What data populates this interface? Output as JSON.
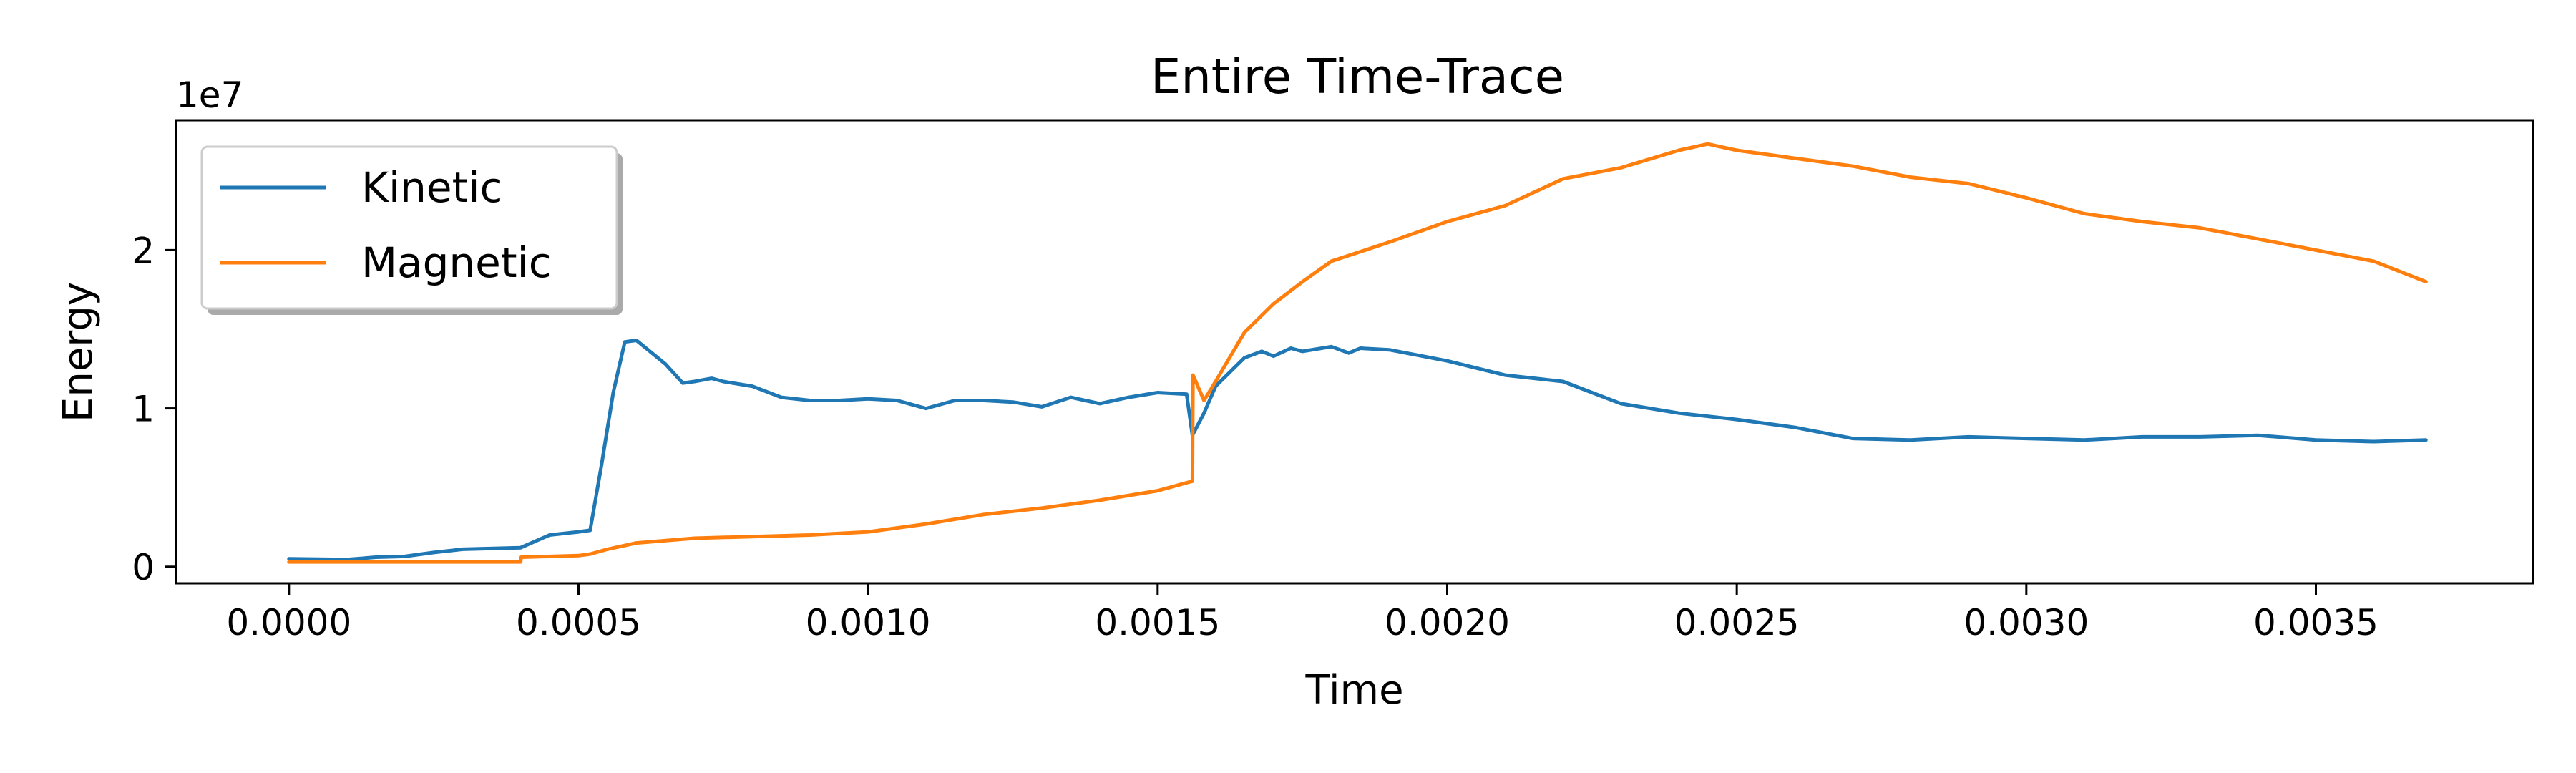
{
  "chart_data": {
    "type": "line",
    "title": "Entire Time-Trace",
    "xlabel": "Time",
    "ylabel": "Energy",
    "y_offset_label": "1e7",
    "xlim": [
      -0.000195,
      0.003875
    ],
    "ylim": [
      -1050000,
      28200000
    ],
    "x_ticks": [
      0.0,
      0.0005,
      0.001,
      0.0015,
      0.002,
      0.0025,
      0.003,
      0.0035
    ],
    "x_tick_labels": [
      "0.0000",
      "0.0005",
      "0.0010",
      "0.0015",
      "0.0020",
      "0.0025",
      "0.0030",
      "0.0035"
    ],
    "y_ticks": [
      0,
      10000000,
      20000000
    ],
    "y_tick_labels": [
      "0",
      "1",
      "2"
    ],
    "grid": false,
    "legend_position": "upper-left",
    "series": [
      {
        "name": "Kinetic",
        "color": "#1f77b4",
        "x": [
          0.0,
          0.0001,
          0.00015,
          0.0002,
          0.00025,
          0.0003,
          0.0004,
          0.00045,
          0.0005,
          0.00052,
          0.00054,
          0.00056,
          0.00058,
          0.0006,
          0.00062,
          0.00065,
          0.00068,
          0.0007,
          0.00073,
          0.00075,
          0.0008,
          0.00085,
          0.0009,
          0.00095,
          0.001,
          0.00105,
          0.0011,
          0.00115,
          0.0012,
          0.00125,
          0.0013,
          0.00135,
          0.0014,
          0.00145,
          0.0015,
          0.00155,
          0.00156,
          0.00158,
          0.0016,
          0.00165,
          0.00168,
          0.0017,
          0.00173,
          0.00175,
          0.0018,
          0.00183,
          0.00185,
          0.0019,
          0.002,
          0.0021,
          0.0022,
          0.0023,
          0.0024,
          0.0025,
          0.0026,
          0.0027,
          0.0028,
          0.0029,
          0.003,
          0.0031,
          0.0032,
          0.0033,
          0.0034,
          0.0035,
          0.0036,
          0.00369
        ],
        "values": [
          500000,
          450000,
          600000,
          650000,
          900000,
          1100000,
          1200000,
          2000000,
          2200000,
          2300000,
          6500000,
          11000000,
          14200000,
          14300000,
          13700000,
          12800000,
          11600000,
          11700000,
          11900000,
          11700000,
          11400000,
          10700000,
          10500000,
          10500000,
          10600000,
          10500000,
          10000000,
          10500000,
          10500000,
          10400000,
          10100000,
          10700000,
          10300000,
          10700000,
          11000000,
          10900000,
          8300000,
          9700000,
          11400000,
          13200000,
          13600000,
          13300000,
          13800000,
          13600000,
          13900000,
          13500000,
          13800000,
          13700000,
          13000000,
          12100000,
          11700000,
          10300000,
          9700000,
          9300000,
          8800000,
          8100000,
          8000000,
          8200000,
          8100000,
          8000000,
          8200000,
          8200000,
          8300000,
          8000000,
          7900000,
          8000000
        ]
      },
      {
        "name": "Magnetic",
        "color": "#ff7f0e",
        "x": [
          0.0,
          0.0001,
          0.0002,
          0.0003,
          0.0004,
          0.000401,
          0.0005,
          0.00052,
          0.00055,
          0.0006,
          0.0007,
          0.0008,
          0.0009,
          0.001,
          0.0011,
          0.0012,
          0.0013,
          0.0014,
          0.0015,
          0.00155,
          0.00156,
          0.001561,
          0.00158,
          0.0016,
          0.00165,
          0.0017,
          0.00175,
          0.0018,
          0.0019,
          0.002,
          0.0021,
          0.0022,
          0.0023,
          0.0024,
          0.00245,
          0.0025,
          0.0026,
          0.0027,
          0.0028,
          0.0029,
          0.003,
          0.0031,
          0.0032,
          0.0033,
          0.0034,
          0.0035,
          0.0036,
          0.00369
        ],
        "values": [
          300000,
          300000,
          300000,
          300000,
          300000,
          600000,
          700000,
          800000,
          1100000,
          1500000,
          1800000,
          1900000,
          2000000,
          2200000,
          2700000,
          3300000,
          3700000,
          4200000,
          4800000,
          5300000,
          5400000,
          12100000,
          10500000,
          11700000,
          14800000,
          16600000,
          18000000,
          19300000,
          20500000,
          21800000,
          22800000,
          24500000,
          25200000,
          26300000,
          26700000,
          26300000,
          25800000,
          25300000,
          24600000,
          24200000,
          23300000,
          22300000,
          21800000,
          21400000,
          20700000,
          20000000,
          19300000,
          18000000
        ]
      }
    ]
  }
}
